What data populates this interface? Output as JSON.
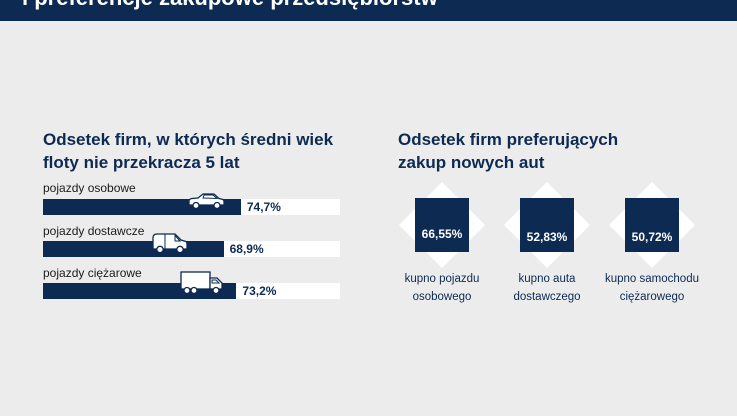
{
  "header": {
    "title": "i preferencje zakupowe przedsiębiorstw"
  },
  "left": {
    "title_line1": "Odsetek firm, w których średni wiek",
    "title_line2": "floty nie przekracza 5 lat"
  },
  "right": {
    "title_line1": "Odsetek firm preferujących",
    "title_line2": "zakup nowych aut"
  },
  "colors": {
    "navy": "#0c2a52",
    "background": "#ececed",
    "white": "#ffffff"
  },
  "chart_data": [
    {
      "type": "bar",
      "title": "Odsetek firm, w których średni wiek floty nie przekracza 5 lat",
      "categories": [
        "pojazdy osobowe",
        "pojazdy dostawcze",
        "pojazdy ciężarowe"
      ],
      "values": [
        74.7,
        68.9,
        73.2
      ],
      "value_labels": [
        "74,7%",
        "68,9%",
        "73,2%"
      ],
      "icons": [
        "car-icon",
        "van-icon",
        "truck-icon"
      ],
      "ylim": [
        0,
        100
      ]
    },
    {
      "type": "table",
      "title": "Odsetek firm preferujących zakup nowych aut",
      "categories": [
        "kupno pojazdu osobowego",
        "kupno auta dostawczego",
        "kupno samochodu ciężarowego"
      ],
      "caption_lines": [
        [
          "kupno pojazdu",
          "osobowego"
        ],
        [
          "kupno auta",
          "dostawczego"
        ],
        [
          "kupno samochodu",
          "ciężarowego"
        ]
      ],
      "values": [
        66.55,
        52.83,
        50.72
      ],
      "value_labels": [
        "66,55%",
        "52,83%",
        "50,72%"
      ]
    }
  ]
}
